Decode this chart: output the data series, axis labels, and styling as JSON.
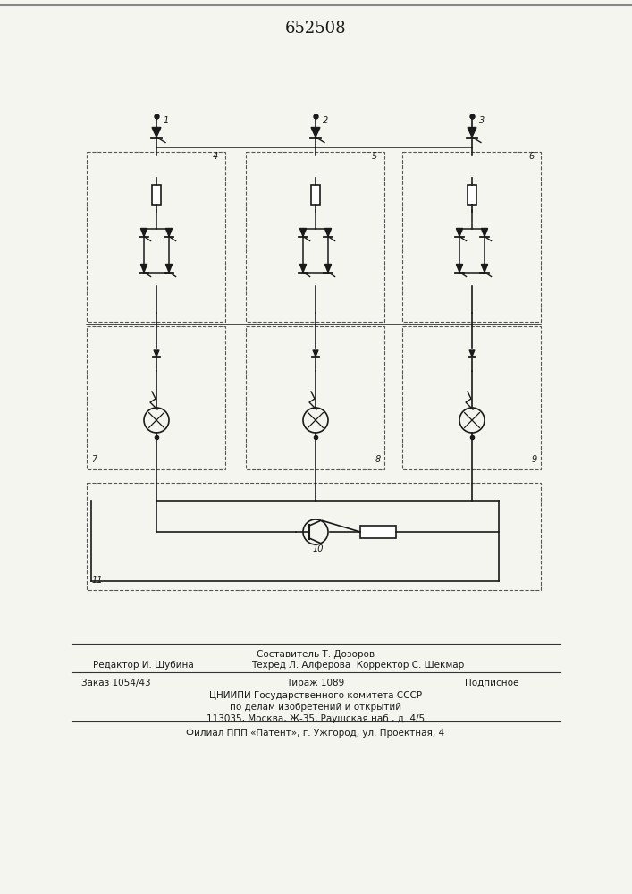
{
  "title": "652508",
  "bg_color": "#f5f5f0",
  "line_color": "#1a1a1a",
  "dashed_color": "#333333",
  "footer_lines": [
    {
      "left": "Редактор И. Шубина",
      "center": "Составитель Т. Дозоров",
      "right": ""
    },
    {
      "left": "",
      "center": "Техред Л. Алферова  Корректор С. Шекмар",
      "right": ""
    },
    {
      "left": "Заказ 1054/43",
      "center": "Тираж 1089",
      "right": "Подписное"
    },
    {
      "left": "",
      "center": "ЦНИИПИ Государственного комитета СССР",
      "right": ""
    },
    {
      "left": "",
      "center": "по делам изобретений и открытий",
      "right": ""
    },
    {
      "left": "",
      "center": "113035, Москва, Ж-35, Раушская наб., д. 4/5",
      "right": ""
    },
    {
      "separator": true
    },
    {
      "left": "",
      "center": "Филиал ППП «Патент», г. Ужгород, ул. Проектная, 4",
      "right": ""
    }
  ]
}
